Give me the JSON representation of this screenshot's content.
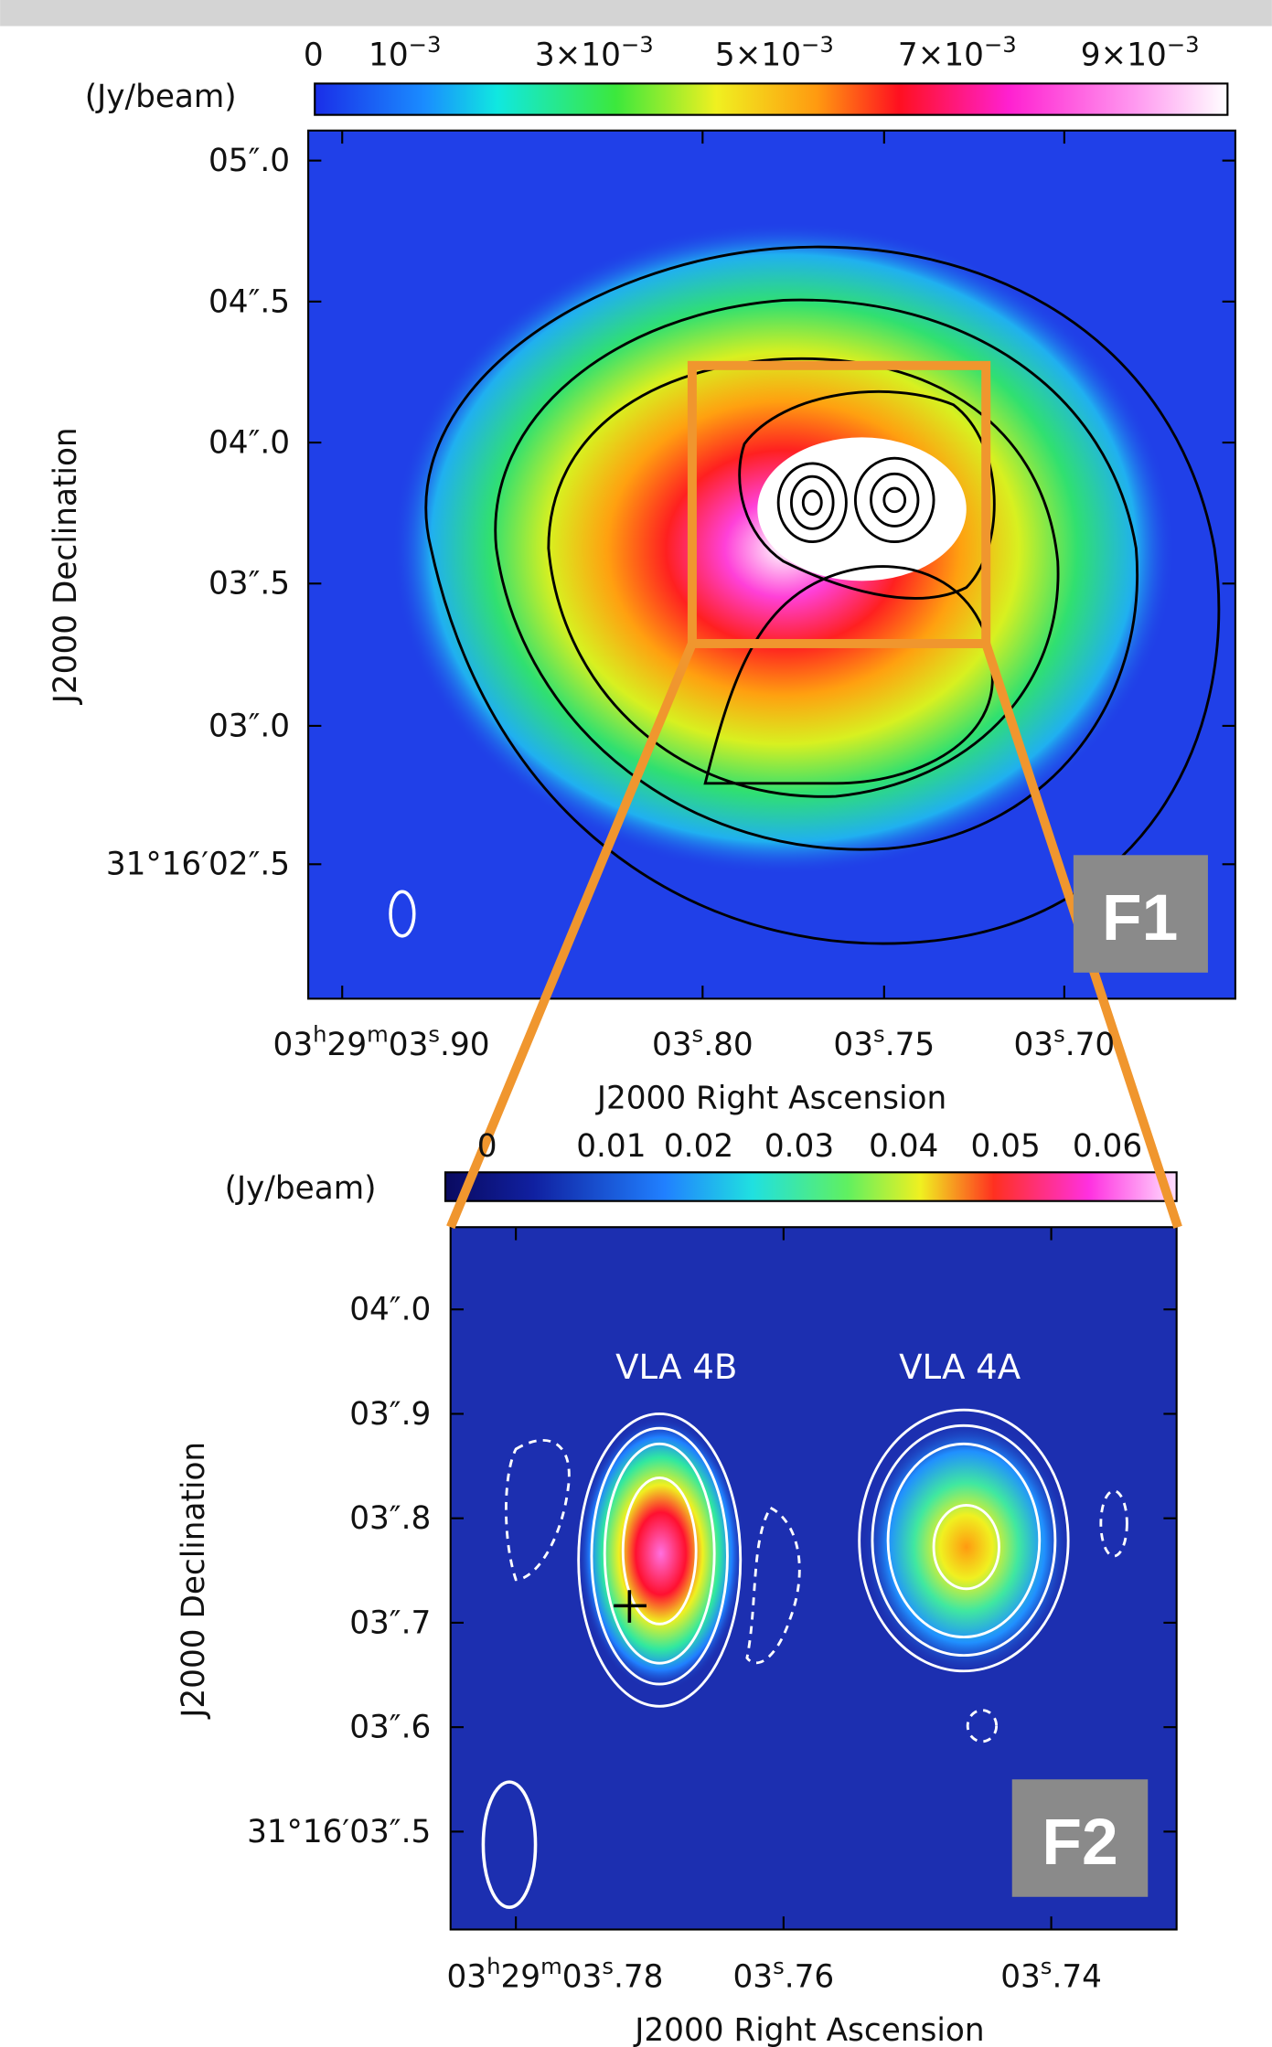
{
  "panel1": {
    "colorbar": {
      "unit": "(Jy/beam)",
      "ticks": [
        {
          "parts": [
            "0"
          ]
        },
        {
          "parts": [
            "10",
            "−3"
          ]
        },
        {
          "parts": [
            "3×10",
            "−3"
          ]
        },
        {
          "parts": [
            "5×10",
            "−3"
          ]
        },
        {
          "parts": [
            "7×10",
            "−3"
          ]
        },
        {
          "parts": [
            "9×10",
            "−3"
          ]
        }
      ]
    },
    "dec_ticks": [
      "05″.0",
      "04″.5",
      "04″.0",
      "03″.5",
      "03″.0",
      "31°16′02″.5"
    ],
    "ra_ticks": [
      {
        "parts": [
          "03",
          "h",
          "29",
          "m",
          "03",
          "s",
          ".90"
        ]
      },
      {
        "parts": [
          "03",
          "s",
          ".80"
        ]
      },
      {
        "parts": [
          "03",
          "s",
          ".75"
        ]
      },
      {
        "parts": [
          "03",
          "s",
          ".70"
        ]
      }
    ],
    "xlabel": "J2000 Right Ascension",
    "ylabel": "J2000 Declination",
    "badge": "F1"
  },
  "panel2": {
    "colorbar": {
      "unit": "(Jy/beam)",
      "ticks": [
        {
          "parts": [
            "0"
          ]
        },
        {
          "parts": [
            "0.01"
          ]
        },
        {
          "parts": [
            "0.02"
          ]
        },
        {
          "parts": [
            "0.03"
          ]
        },
        {
          "parts": [
            "0.04"
          ]
        },
        {
          "parts": [
            "0.05"
          ]
        },
        {
          "parts": [
            "0.06"
          ]
        }
      ]
    },
    "dec_ticks": [
      "04″.0",
      "03″.9",
      "03″.8",
      "03″.7",
      "03″.6",
      "31°16′03″.5"
    ],
    "ra_ticks": [
      {
        "parts": [
          "03",
          "h",
          "29",
          "m",
          "03",
          "s",
          ".78"
        ]
      },
      {
        "parts": [
          "03",
          "s",
          ".76"
        ]
      },
      {
        "parts": [
          "03",
          "s",
          ".74"
        ]
      }
    ],
    "sources": [
      "VLA 4B",
      "VLA 4A"
    ],
    "xlabel": "J2000 Right Ascension",
    "ylabel": "J2000 Declination",
    "badge": "F2"
  }
}
